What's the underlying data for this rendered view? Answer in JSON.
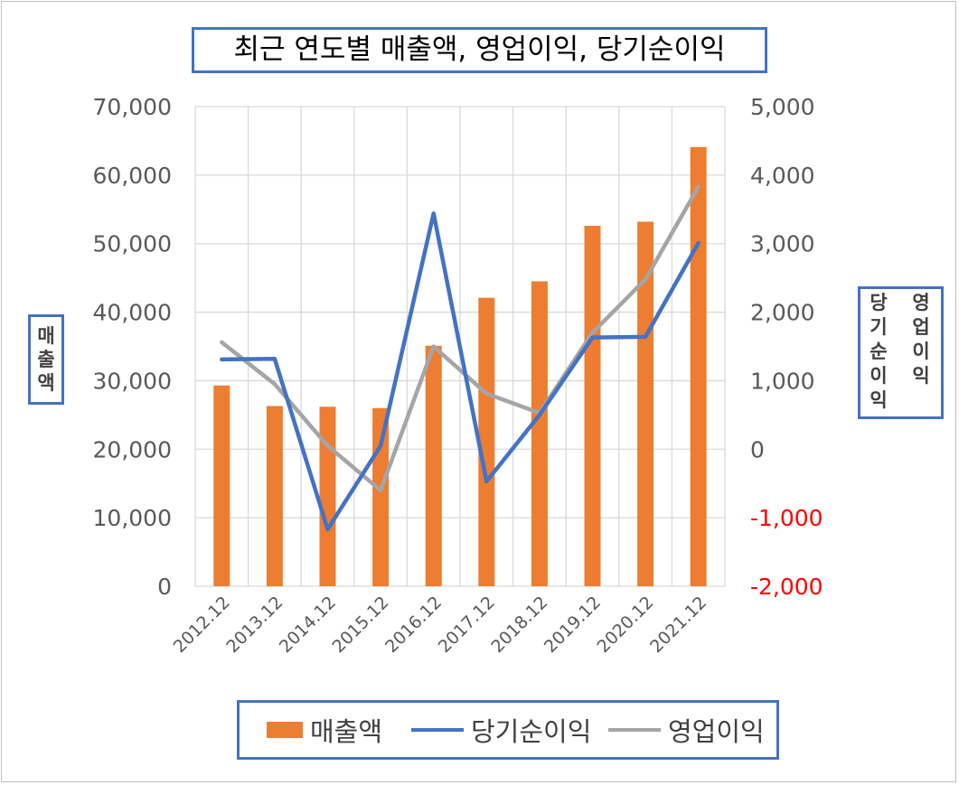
{
  "chart_data": {
    "type": "bar+line",
    "title": "최근 연도별 매출액, 영업이익, 당기순이익",
    "categories": [
      "2012.12",
      "2013.12",
      "2014.12",
      "2015.12",
      "2016.12",
      "2017.12",
      "2018.12",
      "2019.12",
      "2020.12",
      "2021.12"
    ],
    "left_axis": {
      "label": "매출액",
      "ylim": [
        0,
        70000
      ],
      "ticks": [
        "0",
        "10,000",
        "20,000",
        "30,000",
        "40,000",
        "50,000",
        "60,000",
        "70,000"
      ]
    },
    "right_axis": {
      "label_primary": "영업이익",
      "label_secondary": "당기순이익",
      "ylim": [
        -2000,
        5000
      ],
      "ticks": [
        "-2,000",
        "-1,000",
        "0",
        "1,000",
        "2,000",
        "3,000",
        "4,000",
        "5,000"
      ],
      "negative_tick_color": "#ff0000"
    },
    "series": [
      {
        "name": "매출액",
        "type": "bar",
        "axis": "left",
        "color": "#ed7d31",
        "values": [
          29300,
          26300,
          26200,
          26000,
          35100,
          42100,
          44500,
          52600,
          53200,
          64100
        ]
      },
      {
        "name": "당기순이익",
        "type": "line",
        "axis": "right",
        "color": "#4472c4",
        "values": [
          1310,
          1320,
          -1170,
          50,
          3440,
          -470,
          500,
          1630,
          1640,
          3010
        ]
      },
      {
        "name": "영업이익",
        "type": "line",
        "axis": "right",
        "color": "#a5a5a5",
        "values": [
          1560,
          950,
          50,
          -600,
          1500,
          810,
          530,
          1700,
          2480,
          3830
        ]
      }
    ],
    "grid": true,
    "legend_position": "bottom"
  }
}
